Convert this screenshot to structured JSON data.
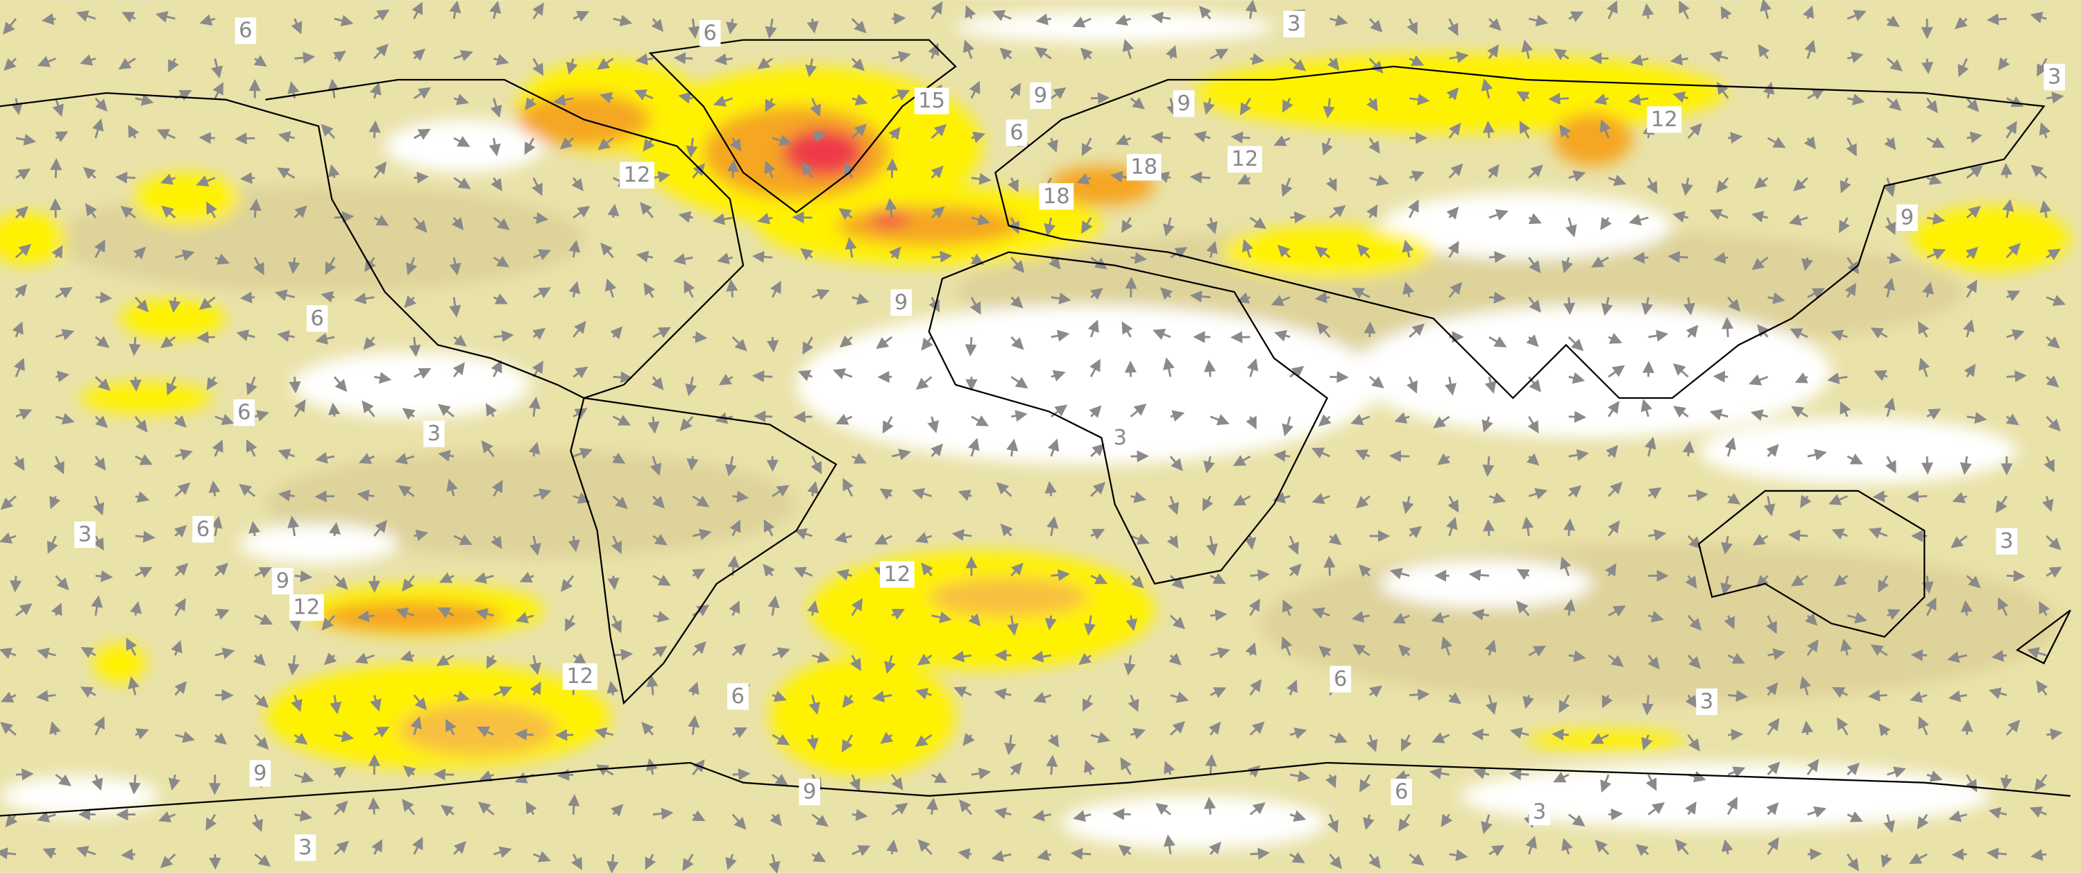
{
  "contour_labels": [
    6,
    6,
    3,
    3,
    15,
    9,
    9,
    6,
    12,
    12,
    12,
    18,
    18,
    9,
    9,
    6,
    6,
    3,
    3,
    3,
    6,
    3,
    9,
    12,
    12,
    12,
    6,
    6,
    3,
    9,
    9,
    6,
    3,
    3
  ]
}
